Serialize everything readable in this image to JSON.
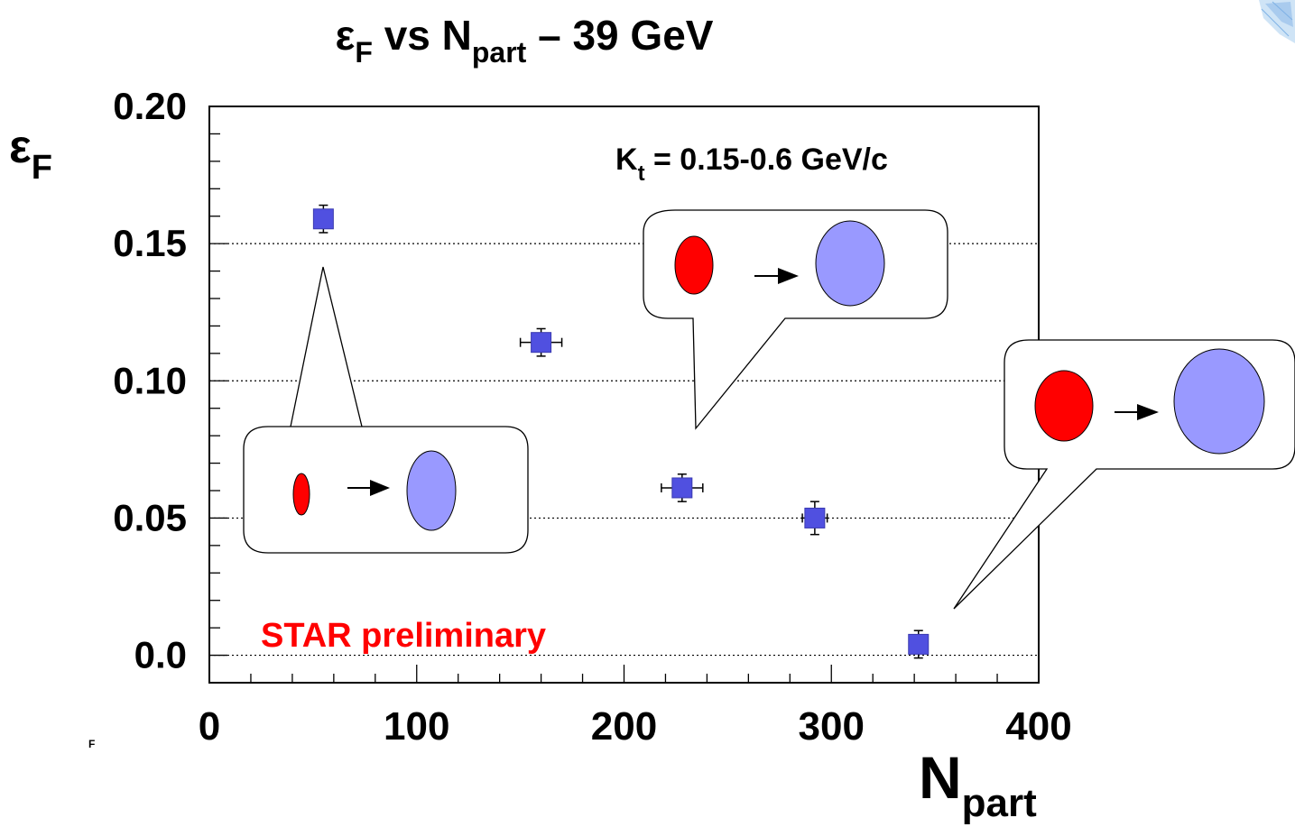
{
  "title": {
    "main": "ε",
    "main_sub": "F",
    "mid": " vs N",
    "mid_sub": "part",
    "tail": " – 39 GeV"
  },
  "annotation": {
    "main": "K",
    "sub": "t",
    "rest": " = 0.15-0.6 GeV/c"
  },
  "watermark": "STAR preliminary",
  "ylabel": {
    "main": "ε",
    "sub": "F"
  },
  "xlabel": {
    "main": "N",
    "sub": "part"
  },
  "stray_glyph": "F",
  "colors": {
    "marker": "#5050e0",
    "watermark": "#ff0000",
    "red_ellipse": "#ff0000",
    "blue_ellipse": "#9999ff",
    "axes": "#000000"
  },
  "chart_data": {
    "type": "scatter",
    "title": "εF vs Npart – 39 GeV",
    "xlabel": "Npart",
    "ylabel": "εF",
    "xlim": [
      0,
      400
    ],
    "ylim": [
      -0.01,
      0.2
    ],
    "x_ticks": [
      "0",
      "100",
      "200",
      "300",
      "400"
    ],
    "y_ticks": [
      "0.0",
      "0.05",
      "0.10",
      "0.15",
      "0.20"
    ],
    "grid": "horizontal dotted at y ticks",
    "points": [
      {
        "x": 55,
        "y": 0.159,
        "yerr": 0.005,
        "xerr": 0
      },
      {
        "x": 160,
        "y": 0.114,
        "yerr": 0.005,
        "xerr": 10
      },
      {
        "x": 228,
        "y": 0.061,
        "yerr": 0.005,
        "xerr": 10
      },
      {
        "x": 292,
        "y": 0.05,
        "yerr": 0.006,
        "xerr": 6
      },
      {
        "x": 342,
        "y": 0.004,
        "yerr": 0.005,
        "xerr": 0
      }
    ]
  }
}
